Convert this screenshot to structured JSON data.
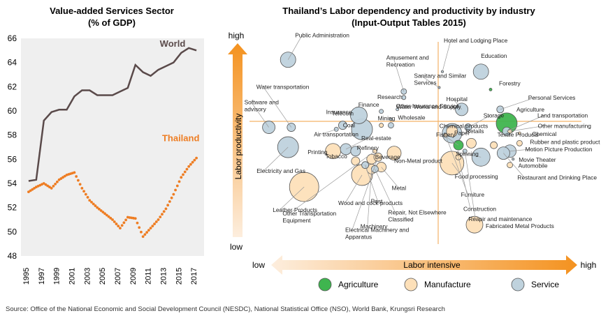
{
  "colors": {
    "world": "#5a4a4a",
    "thailand": "#ee7d23",
    "agriculture": "#3fb54f",
    "manufacture": "#fde0b9",
    "service": "#bfd2dd",
    "axis_line": "#f3b267",
    "arrow": "#f4921f"
  },
  "source": "Source: Office of the National Economic and Social Development Council (NESDC), National Statistical Office (NSO), World Bank, Krungsri Research",
  "chart_data": [
    {
      "type": "line",
      "title": "Value-added Services Sector",
      "subtitle": "(% of GDP)",
      "ylim": [
        48,
        66
      ],
      "yticks": [
        "48",
        "50",
        "52",
        "54",
        "56",
        "58",
        "60",
        "62",
        "64",
        "66"
      ],
      "xticks": [
        "1995",
        "1997",
        "1999",
        "2001",
        "2003",
        "2005",
        "2007",
        "2009",
        "2011",
        "2013",
        "2015",
        "2017"
      ],
      "series": [
        {
          "name": "World",
          "style": "solid",
          "x": [
            1995,
            1996,
            1997,
            1998,
            1999,
            2000,
            2001,
            2002,
            2003,
            2004,
            2005,
            2006,
            2007,
            2008,
            2009,
            2010,
            2011,
            2012,
            2013,
            2014,
            2015,
            2016,
            2017
          ],
          "values": [
            54.2,
            54.3,
            59.2,
            59.9,
            60.1,
            60.1,
            61.2,
            61.7,
            61.7,
            61.3,
            61.3,
            61.3,
            61.6,
            61.9,
            63.8,
            63.2,
            62.9,
            63.4,
            63.7,
            64.0,
            64.8,
            65.2,
            65.0
          ]
        },
        {
          "name": "Thailand",
          "style": "dotted",
          "x": [
            1995,
            1996,
            1997,
            1998,
            1999,
            2000,
            2001,
            2002,
            2003,
            2004,
            2005,
            2006,
            2007,
            2008,
            2009,
            2010,
            2011,
            2012,
            2013,
            2014,
            2015,
            2016,
            2017
          ],
          "values": [
            53.3,
            53.7,
            54.0,
            53.6,
            54.3,
            54.7,
            54.9,
            53.6,
            52.6,
            52.0,
            51.5,
            51.0,
            50.3,
            51.2,
            51.1,
            49.6,
            50.3,
            51.0,
            51.9,
            53.1,
            54.5,
            55.4,
            56.1
          ]
        }
      ]
    },
    {
      "type": "scatter",
      "title": "Thailand’s Labor dependency and productivity by industry",
      "subtitle": "(Input-Output Tables 2015)",
      "xlabel": "Labor intensive",
      "ylabel": "Labor productivity",
      "x_low": "low",
      "x_high": "high",
      "y_low": "low",
      "y_high": "high",
      "legend": [
        "Agriculture",
        "Manufacture",
        "Service"
      ],
      "points": [
        {
          "label": "Public Administration",
          "x": 0.07,
          "y": 0.91,
          "size": 11,
          "group": "Service"
        },
        {
          "label": "Education",
          "x": 0.67,
          "y": 0.85,
          "size": 11,
          "group": "Service"
        },
        {
          "label": "Forestry",
          "x": 0.7,
          "y": 0.76,
          "size": 2,
          "group": "Agriculture"
        },
        {
          "label": "Personal Services",
          "x": 0.73,
          "y": 0.66,
          "size": 5,
          "group": "Service"
        },
        {
          "label": "Agriculture",
          "x": 0.75,
          "y": 0.59,
          "size": 15,
          "group": "Agriculture"
        },
        {
          "label": "Land transportation",
          "x": 0.75,
          "y": 0.55,
          "size": 6,
          "group": "Service"
        },
        {
          "label": "Other manufacturing",
          "x": 0.76,
          "y": 0.55,
          "size": 3,
          "group": "Manufacture"
        },
        {
          "label": "Chemical",
          "x": 0.79,
          "y": 0.54,
          "size": 2,
          "group": "Manufacture"
        },
        {
          "label": "Rubber and plastic product",
          "x": 0.79,
          "y": 0.49,
          "size": 4,
          "group": "Manufacture"
        },
        {
          "label": "Motion Picture Production",
          "x": 0.76,
          "y": 0.45,
          "size": 9,
          "group": "Service"
        },
        {
          "label": "Movie Theater",
          "x": 0.77,
          "y": 0.41,
          "size": 1,
          "group": "Service"
        },
        {
          "label": "Automobile",
          "x": 0.76,
          "y": 0.38,
          "size": 4,
          "group": "Manufacture"
        },
        {
          "label": "Restaurant and Drinking Place",
          "x": 0.74,
          "y": 0.44,
          "size": 9,
          "group": "Service"
        },
        {
          "label": "Hospital",
          "x": 0.61,
          "y": 0.66,
          "size": 9,
          "group": "Service"
        },
        {
          "label": "Storage",
          "x": 0.63,
          "y": 0.57,
          "size": 5,
          "group": "Service"
        },
        {
          "label": "Chemical products",
          "x": 0.58,
          "y": 0.55,
          "size": 8,
          "group": "Manufacture"
        },
        {
          "label": "Retails",
          "x": 0.58,
          "y": 0.54,
          "size": 14,
          "group": "Service"
        },
        {
          "label": "Paper",
          "x": 0.64,
          "y": 0.49,
          "size": 7,
          "group": "Manufacture"
        },
        {
          "label": "Textile Products",
          "x": 0.71,
          "y": 0.48,
          "size": 5,
          "group": "Manufacture"
        },
        {
          "label": "Spinning",
          "x": 0.67,
          "y": 0.42,
          "size": 13,
          "group": "Service"
        },
        {
          "label": "Fishery",
          "x": 0.6,
          "y": 0.48,
          "size": 7,
          "group": "Agriculture"
        },
        {
          "label": "Food processing",
          "x": 0.58,
          "y": 0.39,
          "size": 17,
          "group": "Manufacture"
        },
        {
          "label": "Furniture",
          "x": 0.56,
          "y": 0.53,
          "size": 3,
          "group": "Manufacture"
        },
        {
          "label": "Hotel and Lodging Place",
          "x": 0.55,
          "y": 0.85,
          "size": 1,
          "group": "Service"
        },
        {
          "label": "Sanitary and Similar Services",
          "x": 0.54,
          "y": 0.77,
          "size": 1,
          "group": "Service"
        },
        {
          "label": "Amusement and Recreation",
          "x": 0.43,
          "y": 0.75,
          "size": 4,
          "group": "Service"
        },
        {
          "label": "Research",
          "x": 0.43,
          "y": 0.72,
          "size": 3,
          "group": "Service"
        },
        {
          "label": "Other Insurance Service",
          "x": 0.41,
          "y": 0.66,
          "size": 2,
          "group": "Service"
        },
        {
          "label": "Finance",
          "x": 0.36,
          "y": 0.65,
          "size": 3,
          "group": "Service"
        },
        {
          "label": "Water Works and Supply",
          "x": 0.39,
          "y": 0.61,
          "size": 2,
          "group": "Service"
        },
        {
          "label": "Wholesale",
          "x": 0.39,
          "y": 0.58,
          "size": 4,
          "group": "Service"
        },
        {
          "label": "Insurance",
          "x": 0.29,
          "y": 0.63,
          "size": 12,
          "group": "Service"
        },
        {
          "label": "Coal",
          "x": 0.3,
          "y": 0.56,
          "size": 15,
          "group": "Service"
        },
        {
          "label": "Mining",
          "x": 0.36,
          "y": 0.58,
          "size": 3,
          "group": "Manufacture"
        },
        {
          "label": "Telecom",
          "x": 0.24,
          "y": 0.58,
          "size": 6,
          "group": "Service"
        },
        {
          "label": "Air transportation",
          "x": 0.22,
          "y": 0.56,
          "size": 3,
          "group": "Service"
        },
        {
          "label": "Real-estate",
          "x": 0.25,
          "y": 0.46,
          "size": 8,
          "group": "Service"
        },
        {
          "label": "Refinery",
          "x": 0.28,
          "y": 0.45,
          "size": 7,
          "group": "Service"
        },
        {
          "label": "Printing",
          "x": 0.21,
          "y": 0.45,
          "size": 11,
          "group": "Manufacture"
        },
        {
          "label": "Non-Metal product",
          "x": 0.4,
          "y": 0.44,
          "size": 10,
          "group": "Manufacture"
        },
        {
          "label": "Software and advisory",
          "x": 0.01,
          "y": 0.57,
          "size": 9,
          "group": "Service"
        },
        {
          "label": "Water transportation",
          "x": 0.08,
          "y": 0.57,
          "size": 6,
          "group": "Service"
        },
        {
          "label": "Electricity and Gas",
          "x": 0.07,
          "y": 0.47,
          "size": 15,
          "group": "Service"
        },
        {
          "label": "Leather Products",
          "x": 0.12,
          "y": 0.27,
          "size": 21,
          "group": "Manufacture"
        },
        {
          "label": "Tobacco",
          "x": 0.28,
          "y": 0.4,
          "size": 6,
          "group": "Manufacture"
        },
        {
          "label": "Beverage",
          "x": 0.33,
          "y": 0.41,
          "size": 7,
          "group": "Manufacture"
        },
        {
          "label": "Metal",
          "x": 0.36,
          "y": 0.37,
          "size": 7,
          "group": "Manufacture"
        },
        {
          "label": "Wood and cock products",
          "x": 0.3,
          "y": 0.33,
          "size": 15,
          "group": "Manufacture"
        },
        {
          "label": "Post",
          "x": 0.31,
          "y": 0.38,
          "size": 5,
          "group": "Service"
        },
        {
          "label": "Repair, Not Elsewhere Classified",
          "x": 0.34,
          "y": 0.36,
          "size": 5,
          "group": "Service"
        },
        {
          "label": "Machinery",
          "x": 0.33,
          "y": 0.36,
          "size": 7,
          "group": "Manufacture"
        },
        {
          "label": "Electrical Machinery and Apparatus",
          "x": 0.35,
          "y": 0.42,
          "size": 6,
          "group": "Manufacture"
        },
        {
          "label": "Other Transportation Equipment",
          "x": 0.34,
          "y": 0.45,
          "size": 3,
          "group": "Manufacture"
        },
        {
          "label": "Construction",
          "x": 0.6,
          "y": 0.42,
          "size": 4,
          "group": "Manufacture"
        },
        {
          "label": "Reapir and maintenance",
          "x": 0.62,
          "y": 0.45,
          "size": 3,
          "group": "Service"
        },
        {
          "label": "Fabricated Metal Products",
          "x": 0.65,
          "y": 0.08,
          "size": 12,
          "group": "Manufacture"
        }
      ]
    }
  ]
}
